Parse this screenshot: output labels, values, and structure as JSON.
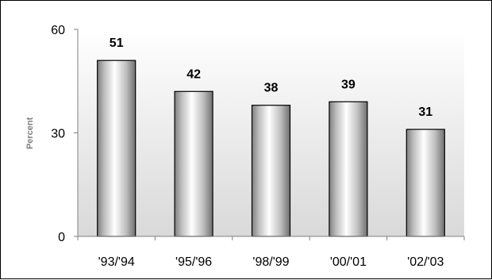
{
  "chart_data": {
    "type": "bar",
    "title": "",
    "xlabel": "",
    "ylabel": "Percent",
    "ylim": [
      0,
      60
    ],
    "yticks": [
      0,
      30,
      60
    ],
    "categories": [
      "'93/'94",
      "'95/'96",
      "'98/'99",
      "'00/'01",
      "'02/'03"
    ],
    "values": [
      51,
      42,
      38,
      39,
      31
    ],
    "data_labels": [
      "51",
      "42",
      "38",
      "39",
      "31"
    ],
    "grid": false,
    "legend": "none",
    "plot_background": "gradient-white-to-gray",
    "bar_style": "cylindrical-gray-gradient"
  }
}
